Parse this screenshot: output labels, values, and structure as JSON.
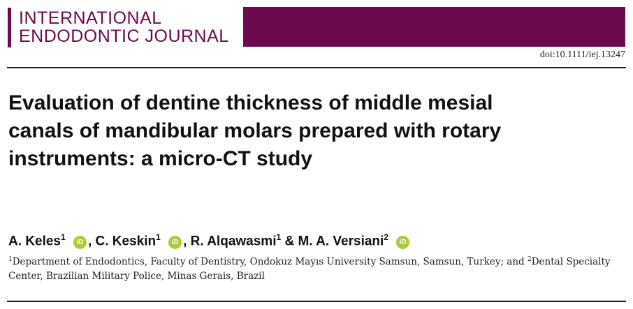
{
  "header": {
    "journal_line1": "INTERNATIONAL",
    "journal_line2": "ENDODONTIC JOURNAL",
    "doi": "doi:10.1111/iej.13247"
  },
  "title_lines": [
    "Evaluation of dentine thickness of middle mesial",
    "canals of mandibular molars prepared with rotary",
    "instruments: a micro-CT study"
  ],
  "authors": [
    {
      "name": "A. Keles",
      "sup": "1"
    },
    {
      "name": "C. Keskin",
      "sup": "1"
    },
    {
      "name": "R. Alqawasmi",
      "sup": "1"
    },
    {
      "name": "M. A. Versiani",
      "sup": "2"
    }
  ],
  "author_separators": [
    ",",
    ",",
    "&"
  ],
  "orcid_label": "iD",
  "affiliations": [
    {
      "sup": "1",
      "text": "Department of Endodontics, Faculty of Dentistry, Ondokuz Mayıs University Samsun, Samsun, Turkey; and"
    },
    {
      "sup": "2",
      "text": "Dental Specialty Center, Brazilian Military Police, Minas Gerais, Brazil"
    }
  ]
}
